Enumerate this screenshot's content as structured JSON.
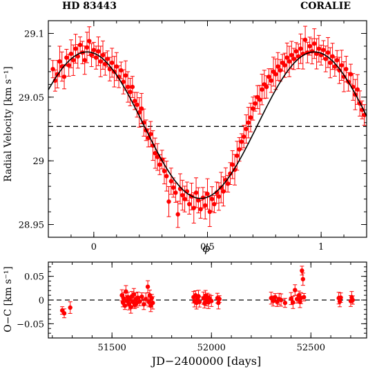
{
  "chart_data": [
    {
      "type": "scatter",
      "title_left": "HD 83443",
      "title_right": "CORALIE",
      "xlabel": "ϕ",
      "ylabel": "Radial Velocity [km s⁻¹]",
      "xlim": [
        -0.2,
        1.2
      ],
      "ylim": [
        28.94,
        29.11
      ],
      "xticks": [
        0,
        0.5,
        1
      ],
      "xtick_labels": [
        "0",
        "0.5",
        "1"
      ],
      "yticks": [
        28.95,
        29,
        29.05,
        29.1
      ],
      "ytick_labels": [
        "28.95",
        "29",
        "29.05",
        "29.1"
      ],
      "mean_velocity": 29.027,
      "fit": {
        "name": "",
        "K": 0.0575,
        "gamma": 29.028,
        "phase_of_max": 0.97
      },
      "series": [
        {
          "name": "",
          "color": "#ff0000",
          "points": [
            [
              -0.18,
              29.072
            ],
            [
              -0.17,
              29.063
            ],
            [
              -0.16,
              29.068
            ],
            [
              -0.15,
              29.078
            ],
            [
              -0.14,
              29.074
            ],
            [
              -0.13,
              29.066
            ],
            [
              -0.12,
              29.081
            ],
            [
              -0.11,
              29.075
            ],
            [
              -0.1,
              29.084
            ],
            [
              -0.09,
              29.079
            ],
            [
              -0.08,
              29.088
            ],
            [
              -0.07,
              29.082
            ],
            [
              -0.06,
              29.091
            ],
            [
              -0.05,
              29.085
            ],
            [
              -0.04,
              29.079
            ],
            [
              -0.03,
              29.089
            ],
            [
              -0.02,
              29.094
            ],
            [
              -0.01,
              29.083
            ],
            [
              0.0,
              29.087
            ],
            [
              0.01,
              29.081
            ],
            [
              0.02,
              29.086
            ],
            [
              0.03,
              29.078
            ],
            [
              0.04,
              29.083
            ],
            [
              0.05,
              29.076
            ],
            [
              0.06,
              29.08
            ],
            [
              0.07,
              29.072
            ],
            [
              0.08,
              29.077
            ],
            [
              0.09,
              29.07
            ],
            [
              0.1,
              29.074
            ],
            [
              0.11,
              29.066
            ],
            [
              0.12,
              29.071
            ],
            [
              0.13,
              29.062
            ],
            [
              0.14,
              29.067
            ],
            [
              0.15,
              29.058
            ],
            [
              0.16,
              29.054
            ],
            [
              0.17,
              29.058
            ],
            [
              0.18,
              29.047
            ],
            [
              0.19,
              29.044
            ],
            [
              0.2,
              29.038
            ],
            [
              0.21,
              29.041
            ],
            [
              0.22,
              29.03
            ],
            [
              0.23,
              29.024
            ],
            [
              0.24,
              29.018
            ],
            [
              0.25,
              29.021
            ],
            [
              0.26,
              29.012
            ],
            [
              0.27,
              29.006
            ],
            [
              0.28,
              29.003
            ],
            [
              0.29,
              28.997
            ],
            [
              0.3,
              29.001
            ],
            [
              0.31,
              28.992
            ],
            [
              0.32,
              28.988
            ],
            [
              0.33,
              28.968
            ],
            [
              0.34,
              28.984
            ],
            [
              0.35,
              28.979
            ],
            [
              0.36,
              28.975
            ],
            [
              0.37,
              28.958
            ],
            [
              0.38,
              28.978
            ],
            [
              0.39,
              28.973
            ],
            [
              0.4,
              28.97
            ],
            [
              0.41,
              28.976
            ],
            [
              0.42,
              28.966
            ],
            [
              0.43,
              28.972
            ],
            [
              0.44,
              28.963
            ],
            [
              0.45,
              28.975
            ],
            [
              0.46,
              28.969
            ],
            [
              0.47,
              28.962
            ],
            [
              0.48,
              28.971
            ],
            [
              0.49,
              28.965
            ],
            [
              0.5,
              28.974
            ],
            [
              0.51,
              28.96
            ],
            [
              0.52,
              28.97
            ],
            [
              0.53,
              28.966
            ],
            [
              0.54,
              28.975
            ],
            [
              0.55,
              28.972
            ],
            [
              0.56,
              28.979
            ],
            [
              0.57,
              28.976
            ],
            [
              0.58,
              28.985
            ],
            [
              0.59,
              28.982
            ],
            [
              0.6,
              28.99
            ],
            [
              0.61,
              28.997
            ],
            [
              0.62,
              28.993
            ],
            [
              0.63,
              29.004
            ],
            [
              0.64,
              29.009
            ],
            [
              0.65,
              29.015
            ],
            [
              0.66,
              29.019
            ],
            [
              0.67,
              29.025
            ],
            [
              0.68,
              29.03
            ],
            [
              0.69,
              29.034
            ],
            [
              0.7,
              29.041
            ],
            [
              0.71,
              29.045
            ],
            [
              0.72,
              29.05
            ],
            [
              0.73,
              29.048
            ],
            [
              0.74,
              29.056
            ],
            [
              0.75,
              29.06
            ],
            [
              0.76,
              29.058
            ],
            [
              0.77,
              29.066
            ],
            [
              0.78,
              29.063
            ],
            [
              0.79,
              29.07
            ],
            [
              0.8,
              29.068
            ],
            [
              0.81,
              29.074
            ],
            [
              0.82,
              29.071
            ],
            [
              0.83,
              29.077
            ],
            [
              0.84,
              29.075
            ],
            [
              0.85,
              29.081
            ],
            [
              0.86,
              29.078
            ],
            [
              0.87,
              29.083
            ],
            [
              0.88,
              29.08
            ],
            [
              0.89,
              29.086
            ],
            [
              0.9,
              29.082
            ],
            [
              0.91,
              29.088
            ],
            [
              0.92,
              29.084
            ],
            [
              0.93,
              29.095
            ],
            [
              0.94,
              29.085
            ],
            [
              0.95,
              29.09
            ],
            [
              0.96,
              29.086
            ],
            [
              0.97,
              29.092
            ],
            [
              0.98,
              29.084
            ],
            [
              0.99,
              29.088
            ],
            [
              1.0,
              29.083
            ],
            [
              1.01,
              29.087
            ],
            [
              1.02,
              29.08
            ],
            [
              1.03,
              29.085
            ],
            [
              1.04,
              29.077
            ],
            [
              1.05,
              29.082
            ],
            [
              1.06,
              29.074
            ],
            [
              1.07,
              29.079
            ],
            [
              1.08,
              29.071
            ],
            [
              1.09,
              29.075
            ],
            [
              1.1,
              29.066
            ],
            [
              1.11,
              29.072
            ],
            [
              1.12,
              29.062
            ],
            [
              1.13,
              29.068
            ],
            [
              1.14,
              29.058
            ],
            [
              1.15,
              29.052
            ],
            [
              1.16,
              29.056
            ],
            [
              1.17,
              29.045
            ],
            [
              1.18,
              29.04
            ],
            [
              1.19,
              29.036
            ]
          ]
        }
      ]
    },
    {
      "type": "scatter",
      "xlabel": "JD−2400000 [days]",
      "ylabel": "O−C [km s⁻¹]",
      "xlim": [
        51180,
        52780
      ],
      "ylim": [
        -0.08,
        0.08
      ],
      "xticks": [
        51500,
        52000,
        52500
      ],
      "xtick_labels": [
        "51500",
        "52000",
        "52500"
      ],
      "yticks": [
        -0.05,
        0,
        0.05
      ],
      "ytick_labels": [
        "−0.05",
        "0",
        "0.05"
      ],
      "zero_line": 0,
      "series": [
        {
          "name": "",
          "color": "#ff0000",
          "points": [
            [
              51250,
              -0.022
            ],
            [
              51260,
              -0.028
            ],
            [
              51290,
              -0.016
            ],
            [
              51550,
              0.01
            ],
            [
              51555,
              -0.005
            ],
            [
              51560,
              0.003
            ],
            [
              51565,
              -0.012
            ],
            [
              51570,
              0.018
            ],
            [
              51575,
              -0.002
            ],
            [
              51580,
              0.006
            ],
            [
              51585,
              -0.008
            ],
            [
              51590,
              0.001
            ],
            [
              51595,
              -0.015
            ],
            [
              51600,
              0.008
            ],
            [
              51605,
              -0.004
            ],
            [
              51610,
              0.012
            ],
            [
              51615,
              -0.01
            ],
            [
              51620,
              0.002
            ],
            [
              51625,
              -0.006
            ],
            [
              51630,
              0.005
            ],
            [
              51640,
              -0.003
            ],
            [
              51650,
              0.007
            ],
            [
              51660,
              -0.009
            ],
            [
              51670,
              0.002
            ],
            [
              51680,
              0.028
            ],
            [
              51685,
              -0.004
            ],
            [
              51690,
              0.01
            ],
            [
              51695,
              -0.012
            ],
            [
              51700,
              0.004
            ],
            [
              51705,
              -0.006
            ],
            [
              51910,
              0.006
            ],
            [
              51915,
              -0.003
            ],
            [
              51920,
              0.01
            ],
            [
              51925,
              -0.006
            ],
            [
              51930,
              0.002
            ],
            [
              51935,
              0.008
            ],
            [
              51940,
              -0.004
            ],
            [
              51960,
              0.004
            ],
            [
              51965,
              -0.007
            ],
            [
              51970,
              0.009
            ],
            [
              51975,
              0.0
            ],
            [
              51980,
              0.006
            ],
            [
              51985,
              -0.005
            ],
            [
              51990,
              0.003
            ],
            [
              52000,
              -0.002
            ],
            [
              52030,
              0.004
            ],
            [
              52035,
              -0.006
            ],
            [
              52040,
              0.002
            ],
            [
              52300,
              0.004
            ],
            [
              52310,
              -0.002
            ],
            [
              52320,
              0.006
            ],
            [
              52330,
              -0.004
            ],
            [
              52340,
              0.002
            ],
            [
              52350,
              0.0
            ],
            [
              52370,
              -0.006
            ],
            [
              52400,
              0.003
            ],
            [
              52410,
              -0.005
            ],
            [
              52420,
              0.021
            ],
            [
              52430,
              0.002
            ],
            [
              52440,
              0.01
            ],
            [
              52445,
              -0.004
            ],
            [
              52450,
              0.004
            ],
            [
              52455,
              0.062
            ],
            [
              52460,
              0.044
            ],
            [
              52465,
              0.006
            ],
            [
              52640,
              0.004
            ],
            [
              52645,
              -0.003
            ],
            [
              52650,
              0.005
            ],
            [
              52700,
              -0.002
            ],
            [
              52705,
              0.006
            ],
            [
              52710,
              0.0
            ]
          ]
        }
      ]
    }
  ]
}
